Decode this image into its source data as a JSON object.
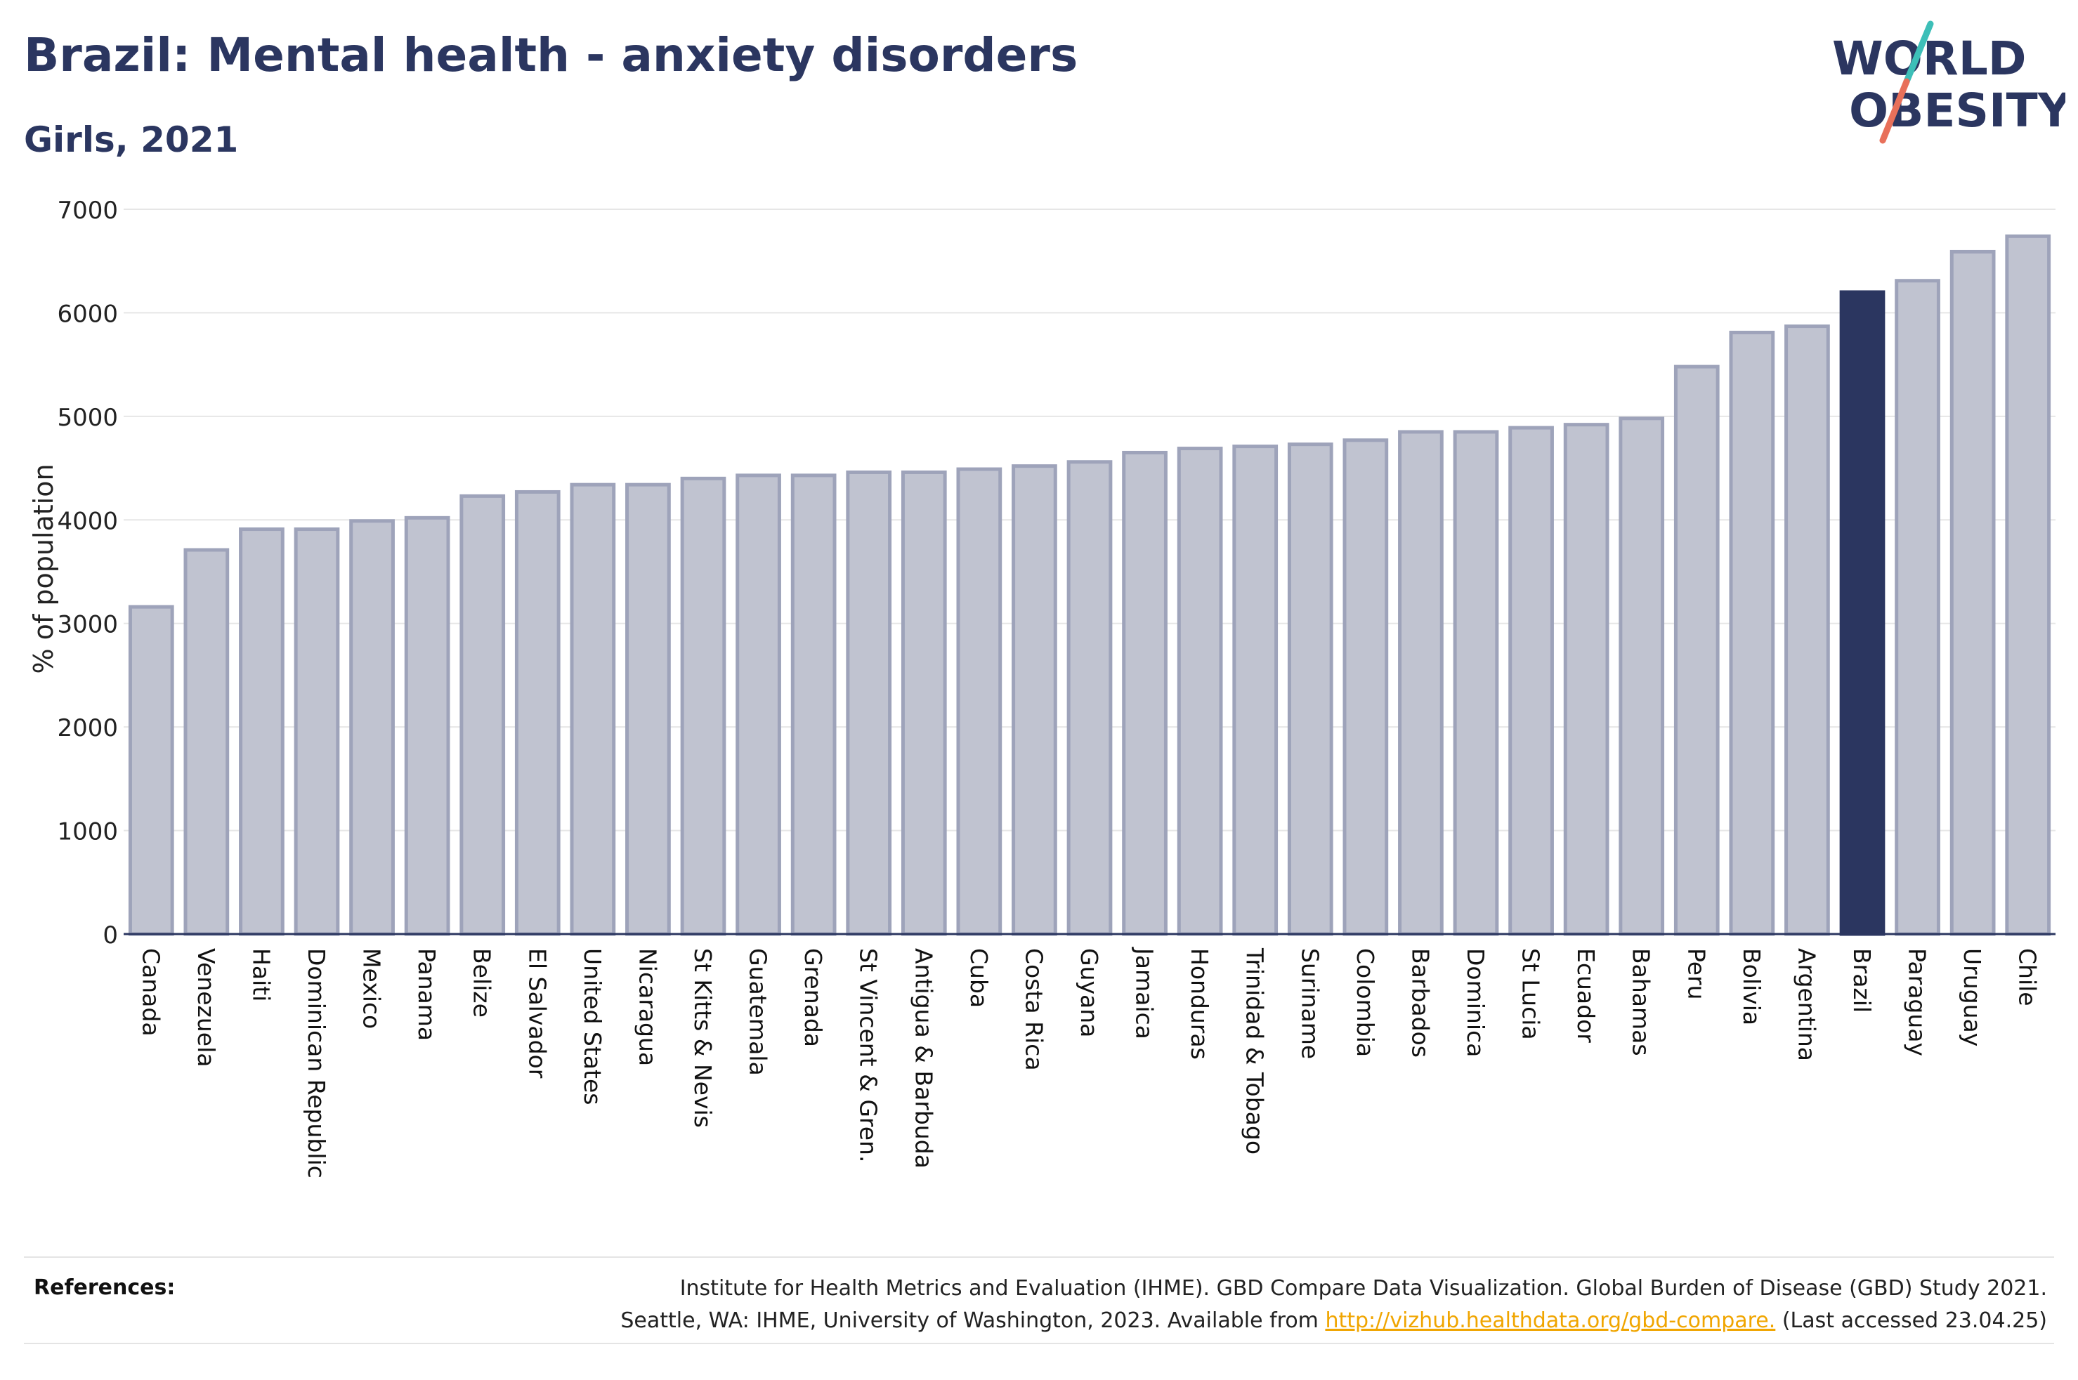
{
  "header": {
    "title": "Brazil: Mental health - anxiety disorders",
    "subtitle": "Girls, 2021"
  },
  "logo": {
    "line1": "WORLD",
    "line2": "OBESITY",
    "text_color": "#2b3660",
    "slash_color_top": "#3dbfb8",
    "slash_color_bottom": "#e8705a"
  },
  "chart_data": {
    "type": "bar",
    "ylabel": "% of population",
    "xlabel": "",
    "ylim": [
      0,
      7000
    ],
    "yticks": [
      0,
      1000,
      2000,
      3000,
      4000,
      5000,
      6000,
      7000
    ],
    "grid": true,
    "highlight": "Brazil",
    "colors": {
      "bar_fill": "#c0c3d0",
      "bar_stroke": "#9ea3ba",
      "highlight_fill": "#2b3660"
    },
    "categories": [
      "Canada",
      "Venezuela",
      "Haiti",
      "Dominican Republic",
      "Mexico",
      "Panama",
      "Belize",
      "El Salvador",
      "United States",
      "Nicaragua",
      "St Kitts & Nevis",
      "Guatemala",
      "Grenada",
      "St Vincent & Gren.",
      "Antigua & Barbuda",
      "Cuba",
      "Costa Rica",
      "Guyana",
      "Jamaica",
      "Honduras",
      "Trinidad & Tobago",
      "Suriname",
      "Colombia",
      "Barbados",
      "Dominica",
      "St Lucia",
      "Ecuador",
      "Bahamas",
      "Peru",
      "Bolivia",
      "Argentina",
      "Brazil",
      "Paraguay",
      "Uruguay",
      "Chile"
    ],
    "values": [
      3160,
      3710,
      3910,
      3910,
      3990,
      4020,
      4230,
      4270,
      4340,
      4340,
      4400,
      4430,
      4430,
      4460,
      4460,
      4490,
      4520,
      4560,
      4650,
      4690,
      4710,
      4730,
      4770,
      4850,
      4850,
      4890,
      4920,
      4980,
      5480,
      5810,
      5870,
      6200,
      6310,
      6590,
      6740
    ]
  },
  "references": {
    "label": "References:",
    "line1": "Institute for Health Metrics and Evaluation (IHME). GBD Compare Data Visualization. Global Burden of Disease (GBD) Study 2021.",
    "line2_pre": "Seattle, WA: IHME, University of Washington, 2023. Available from ",
    "link_text": "http://vizhub.healthdata.org/gbd-compare.",
    "line2_post": " (Last accessed 23.04.25)"
  }
}
